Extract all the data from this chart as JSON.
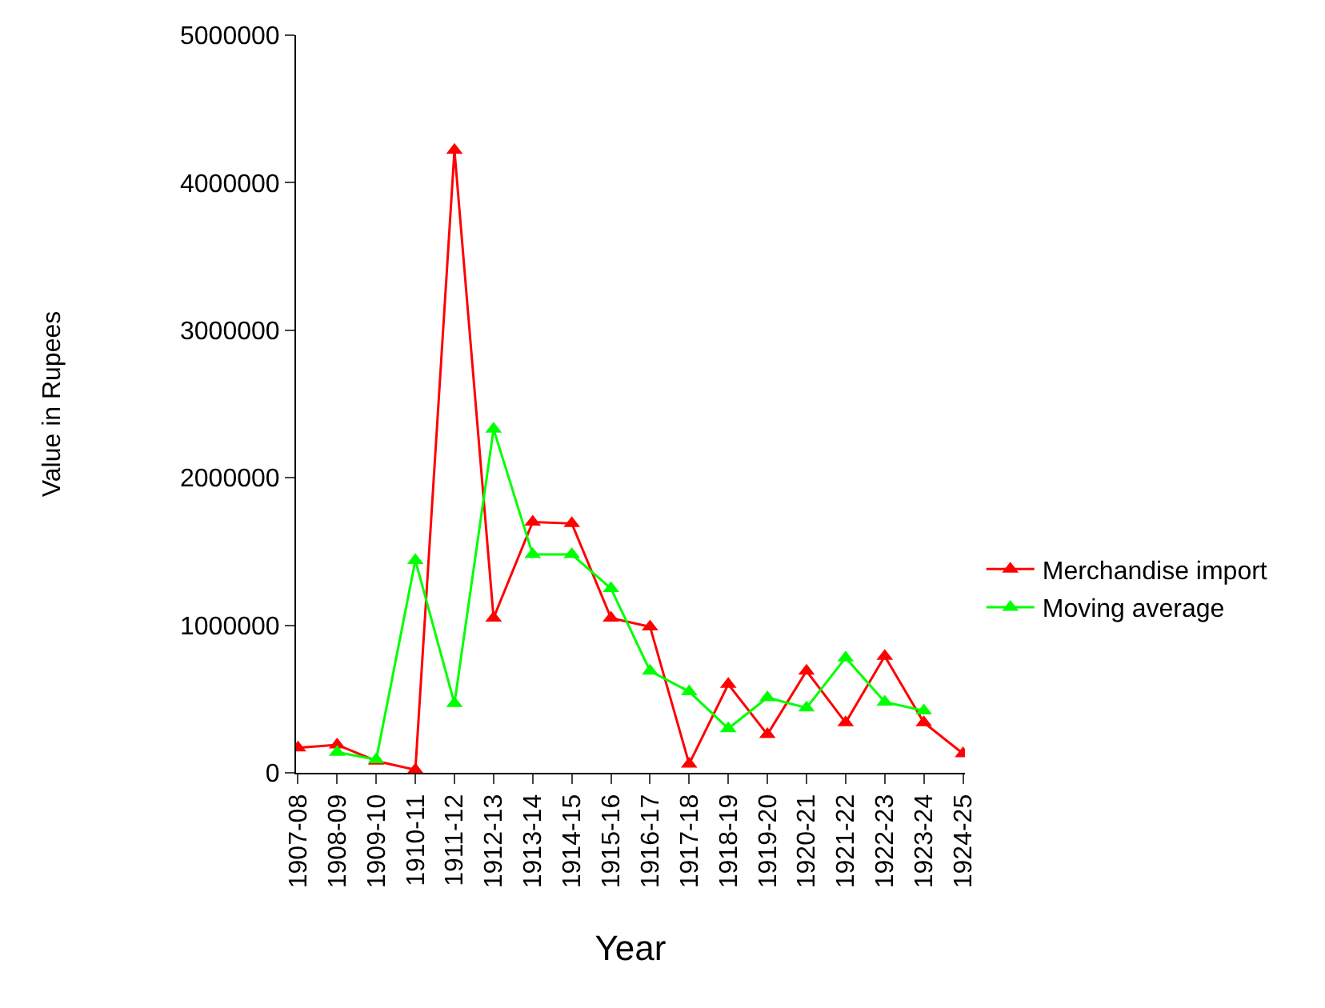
{
  "chart_data": {
    "type": "line",
    "xlabel": "Year",
    "ylabel": "Value in Rupees",
    "categories": [
      "1907-08",
      "1908-09",
      "1909-10",
      "1910-11",
      "1911-12",
      "1912-13",
      "1913-14",
      "1914-15",
      "1915-16",
      "1916-17",
      "1917-18",
      "1918-19",
      "1919-20",
      "1920-21",
      "1921-22",
      "1922-23",
      "1923-24",
      "1924-25"
    ],
    "series": [
      {
        "name": "Merchandise import",
        "color": "#ff0000",
        "values": [
          170000,
          190000,
          80000,
          20000,
          4220000,
          1050000,
          1700000,
          1690000,
          1050000,
          990000,
          60000,
          600000,
          260000,
          690000,
          340000,
          790000,
          340000,
          130000
        ]
      },
      {
        "name": "Moving average",
        "color": "#00ff00",
        "values": [
          null,
          140000,
          90000,
          1440000,
          470000,
          2330000,
          1480000,
          1480000,
          1250000,
          690000,
          550000,
          300000,
          510000,
          440000,
          780000,
          480000,
          420000,
          null
        ]
      }
    ],
    "ylim": [
      0,
      5000000
    ],
    "yticks": [
      0,
      1000000,
      2000000,
      3000000,
      4000000,
      5000000
    ],
    "legend": "right",
    "marker": "triangle",
    "line_style": "solid"
  }
}
